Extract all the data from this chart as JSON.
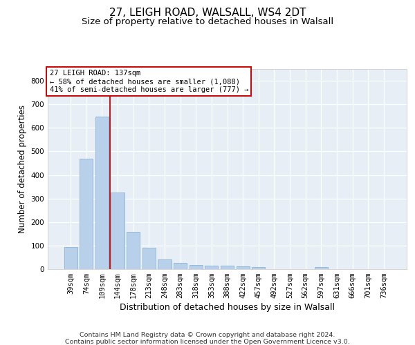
{
  "title1": "27, LEIGH ROAD, WALSALL, WS4 2DT",
  "title2": "Size of property relative to detached houses in Walsall",
  "xlabel": "Distribution of detached houses by size in Walsall",
  "ylabel": "Number of detached properties",
  "footnote1": "Contains HM Land Registry data © Crown copyright and database right 2024.",
  "footnote2": "Contains public sector information licensed under the Open Government Licence v3.0.",
  "categories": [
    "39sqm",
    "74sqm",
    "109sqm",
    "144sqm",
    "178sqm",
    "213sqm",
    "248sqm",
    "283sqm",
    "318sqm",
    "353sqm",
    "388sqm",
    "422sqm",
    "457sqm",
    "492sqm",
    "527sqm",
    "562sqm",
    "597sqm",
    "631sqm",
    "666sqm",
    "701sqm",
    "736sqm"
  ],
  "values": [
    95,
    470,
    648,
    325,
    158,
    92,
    40,
    25,
    17,
    15,
    14,
    13,
    9,
    0,
    0,
    0,
    8,
    0,
    0,
    0,
    0
  ],
  "bar_color": "#b8d0ea",
  "bar_edge_color": "#88b4d8",
  "vline_x": 2.5,
  "vline_color": "#cc0000",
  "annotation_title": "27 LEIGH ROAD: 137sqm",
  "annotation_line1": "← 58% of detached houses are smaller (1,088)",
  "annotation_line2": "41% of semi-detached houses are larger (777) →",
  "ylim_max": 850,
  "yticks": [
    0,
    100,
    200,
    300,
    400,
    500,
    600,
    700,
    800
  ],
  "bg_color": "#e8eef6",
  "grid_color": "#ffffff",
  "title1_fontsize": 11,
  "title2_fontsize": 9.5,
  "ylabel_fontsize": 8.5,
  "xlabel_fontsize": 9,
  "tick_fontsize": 7.5,
  "ann_fontsize": 7.5,
  "footnote_fontsize": 6.8
}
